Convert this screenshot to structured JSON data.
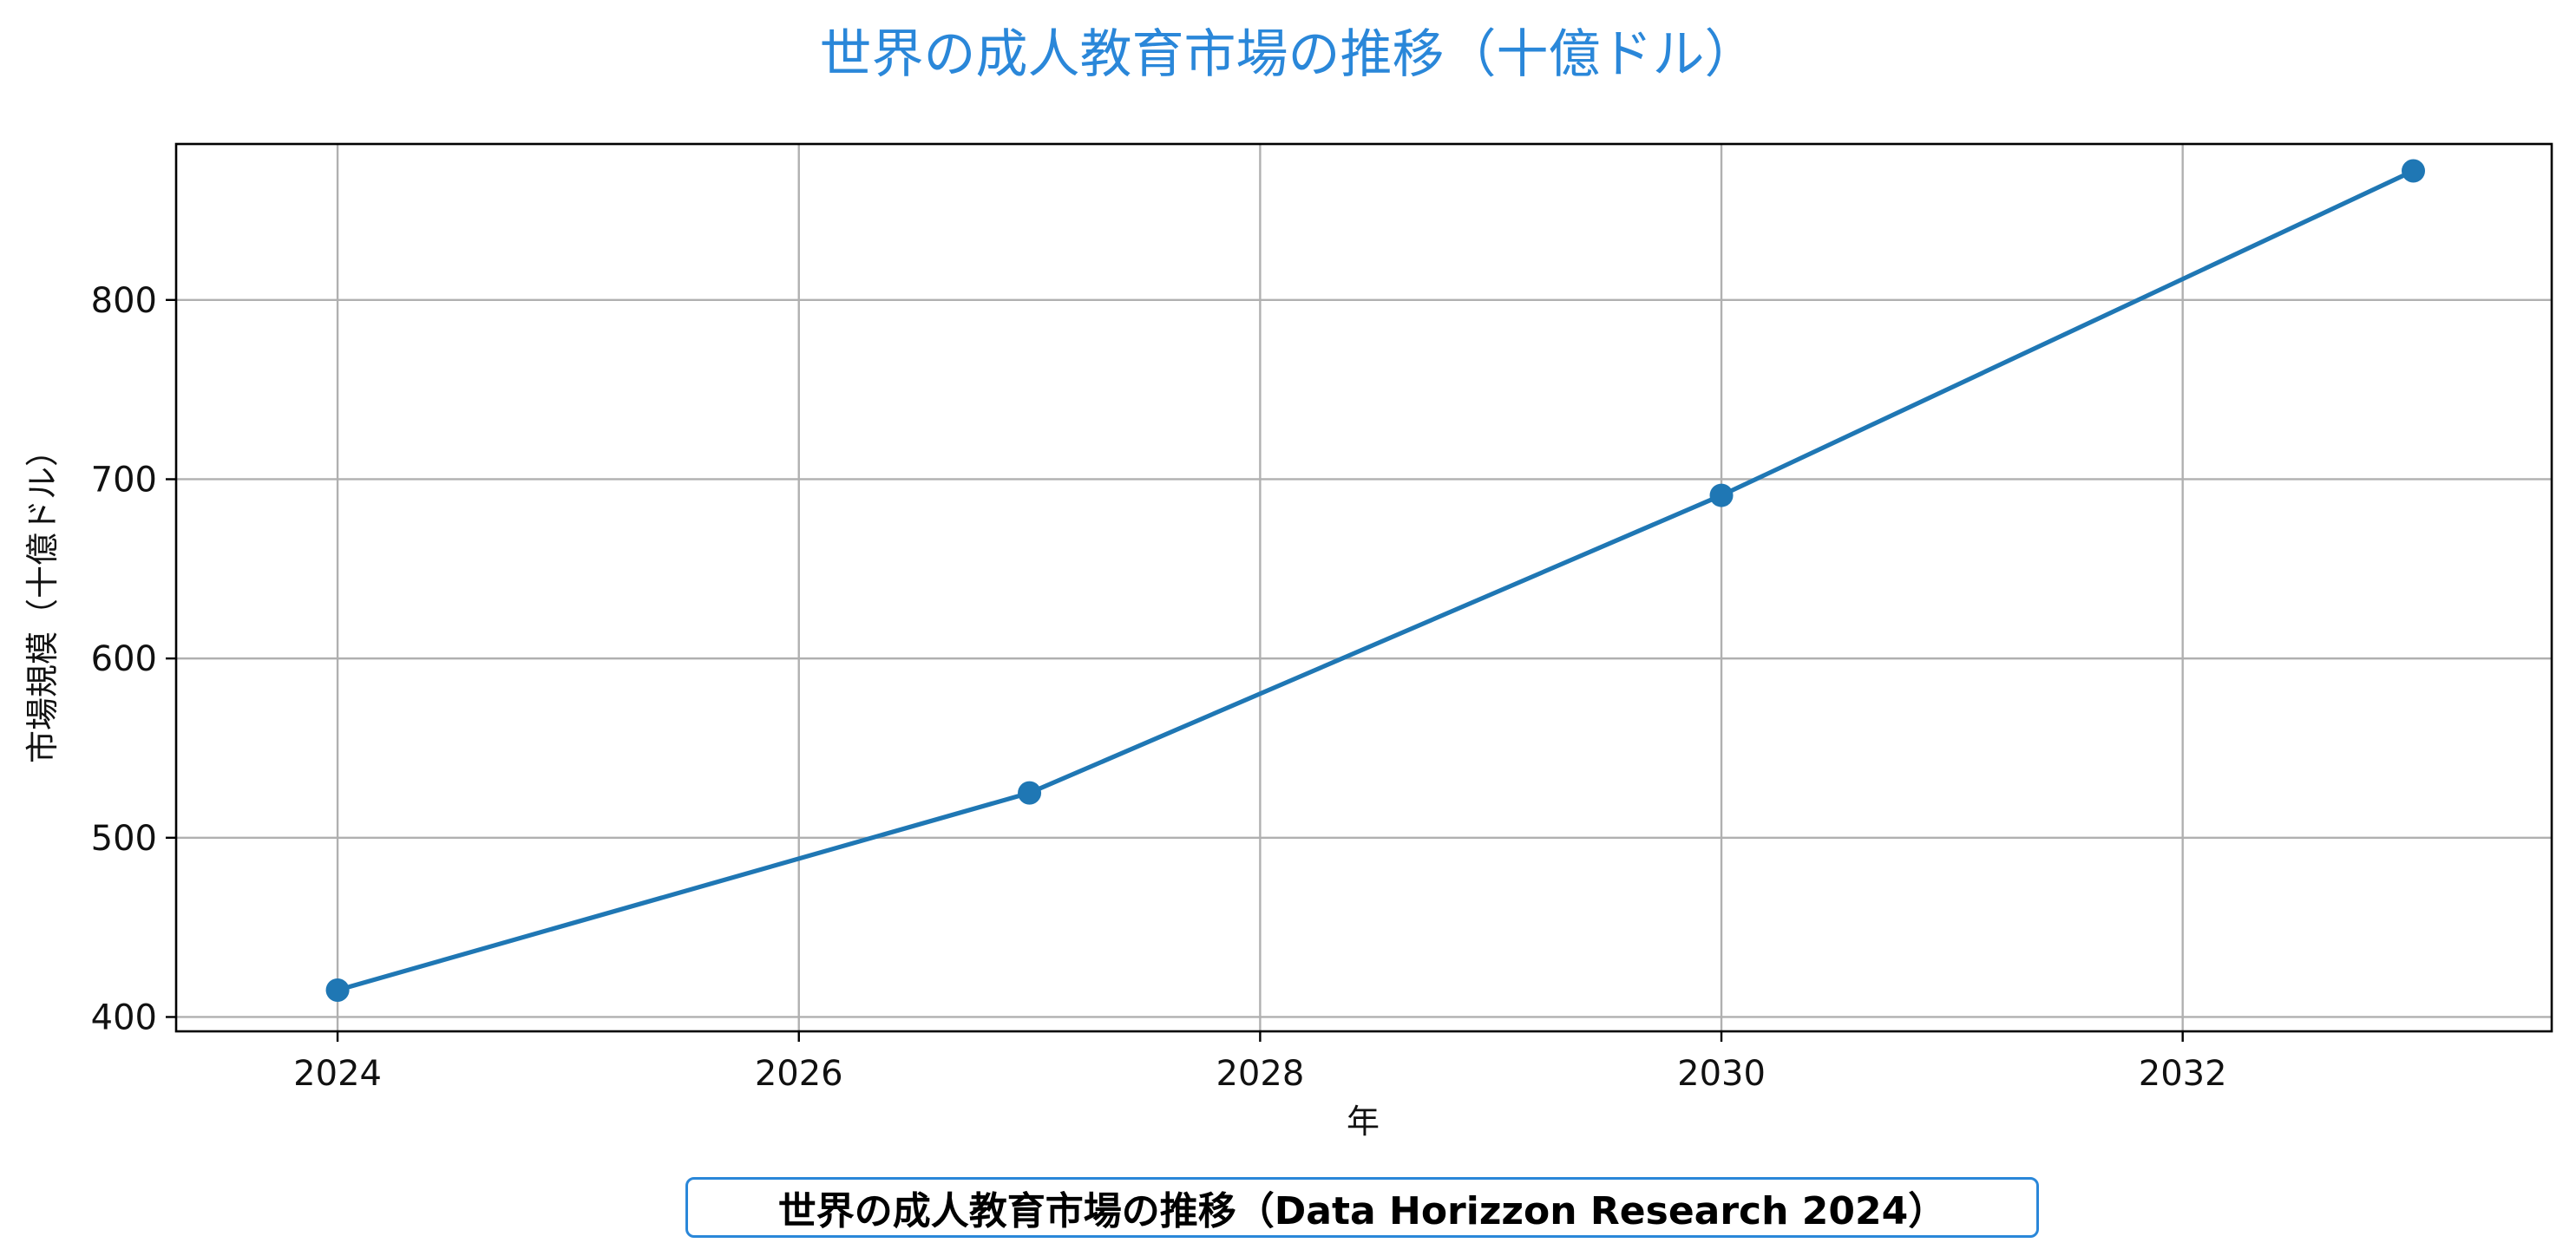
{
  "chart_data": {
    "type": "line",
    "title": "世界の成人教育市場の推移（十億ドル）",
    "xlabel": "年",
    "ylabel": "市場規模（十億ドル）",
    "x": [
      2024,
      2027,
      2030,
      2033
    ],
    "series": [
      {
        "values": [
          415,
          525,
          691,
          872
        ]
      }
    ],
    "xlim": [
      2023.3,
      2033.6
    ],
    "ylim": [
      392,
      887
    ],
    "xticks": [
      2024,
      2026,
      2028,
      2030,
      2032
    ],
    "yticks": [
      400,
      500,
      600,
      700,
      800
    ],
    "grid": true,
    "line_color": "#1f77b4",
    "title_color": "#2a87d9",
    "caption": "世界の成人教育市場の推移（Data Horizzon Research 2024）",
    "caption_border_color": "#2a87d9"
  }
}
